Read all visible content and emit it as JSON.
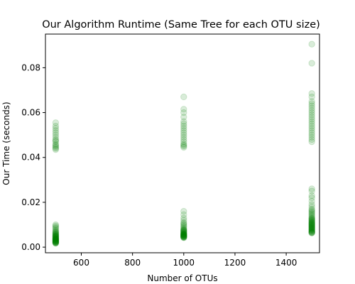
{
  "chart_data": {
    "type": "scatter",
    "title": "Our Algorithm Runtime (Same Tree for each OTU size)",
    "xlabel": "Number of OTUs",
    "ylabel": "Our Time (seconds)",
    "xlim": [
      460,
      1530
    ],
    "ylim": [
      -0.0025,
      0.095
    ],
    "x_ticks": [
      600,
      800,
      1000,
      1200,
      1400
    ],
    "y_ticks": [
      0.0,
      0.02,
      0.04,
      0.06,
      0.08
    ],
    "y_tick_labels": [
      "0.00",
      "0.02",
      "0.04",
      "0.06",
      "0.08"
    ],
    "grid": false,
    "legend": "none",
    "marker_color": "#008000",
    "marker_alpha": 0.15,
    "series": [
      {
        "x": [
          500,
          500,
          500,
          500,
          500,
          500,
          500,
          500,
          500,
          500,
          500,
          500,
          500,
          500,
          500,
          500,
          500,
          500,
          500,
          500,
          500,
          500,
          500,
          500,
          500,
          500,
          500,
          500,
          500,
          500,
          500,
          500,
          500,
          500,
          500,
          500,
          500,
          500,
          500,
          500,
          500,
          500,
          500,
          500,
          500,
          500,
          500,
          500,
          500,
          500,
          500,
          500,
          500,
          500,
          500,
          500,
          500,
          500,
          500,
          500,
          500,
          500,
          1000,
          1000,
          1000,
          1000,
          1000,
          1000,
          1000,
          1000,
          1000,
          1000,
          1000,
          1000,
          1000,
          1000,
          1000,
          1000,
          1000,
          1000,
          1000,
          1000,
          1000,
          1000,
          1000,
          1000,
          1000,
          1000,
          1000,
          1000,
          1000,
          1000,
          1000,
          1000,
          1000,
          1000,
          1000,
          1000,
          1000,
          1000,
          1000,
          1000,
          1000,
          1000,
          1000,
          1000,
          1000,
          1000,
          1000,
          1000,
          1000,
          1000,
          1000,
          1000,
          1000,
          1000,
          1000,
          1000,
          1000,
          1500,
          1500,
          1500,
          1500,
          1500,
          1500,
          1500,
          1500,
          1500,
          1500,
          1500,
          1500,
          1500,
          1500,
          1500,
          1500,
          1500,
          1500,
          1500,
          1500,
          1500,
          1500,
          1500,
          1500,
          1500,
          1500,
          1500,
          1500,
          1500,
          1500,
          1500,
          1500,
          1500,
          1500,
          1500,
          1500,
          1500,
          1500,
          1500,
          1500,
          1500,
          1500,
          1500,
          1500,
          1500,
          1500,
          1500,
          1500,
          1500,
          1500,
          1500,
          1500,
          1500,
          1500,
          1500,
          1500,
          1500,
          1500,
          1500,
          1500,
          1500,
          1500,
          1500,
          1500,
          1500,
          1500,
          1500,
          1500,
          1500,
          1500,
          1500,
          1500
        ],
        "y": [
          0.0555,
          0.054,
          0.053,
          0.052,
          0.051,
          0.05,
          0.049,
          0.048,
          0.0475,
          0.047,
          0.046,
          0.0455,
          0.045,
          0.0445,
          0.044,
          0.0435,
          0.01,
          0.0095,
          0.009,
          0.0085,
          0.008,
          0.0075,
          0.007,
          0.0068,
          0.0065,
          0.0062,
          0.006,
          0.0058,
          0.0056,
          0.0054,
          0.0052,
          0.005,
          0.0049,
          0.0048,
          0.0046,
          0.0045,
          0.0044,
          0.0042,
          0.004,
          0.0039,
          0.0038,
          0.0037,
          0.0036,
          0.0035,
          0.0034,
          0.0033,
          0.0032,
          0.0031,
          0.003,
          0.0029,
          0.0028,
          0.0027,
          0.0026,
          0.0025,
          0.0024,
          0.0023,
          0.0022,
          0.0021,
          0.002,
          0.0019,
          0.0018,
          0.0017,
          0.067,
          0.0615,
          0.06,
          0.058,
          0.056,
          0.055,
          0.054,
          0.053,
          0.052,
          0.051,
          0.05,
          0.049,
          0.048,
          0.047,
          0.046,
          0.0455,
          0.045,
          0.0445,
          0.016,
          0.0145,
          0.013,
          0.012,
          0.011,
          0.0105,
          0.01,
          0.0095,
          0.009,
          0.0085,
          0.008,
          0.0078,
          0.0076,
          0.0074,
          0.0072,
          0.007,
          0.0068,
          0.0066,
          0.0064,
          0.0062,
          0.006,
          0.0059,
          0.0058,
          0.0057,
          0.0056,
          0.0055,
          0.0054,
          0.0053,
          0.0052,
          0.0051,
          0.005,
          0.0049,
          0.0048,
          0.0047,
          0.0046,
          0.0045,
          0.0044,
          0.0043,
          0.0042,
          0.0905,
          0.082,
          0.0685,
          0.067,
          0.065,
          0.064,
          0.063,
          0.062,
          0.061,
          0.06,
          0.059,
          0.058,
          0.057,
          0.056,
          0.055,
          0.054,
          0.053,
          0.052,
          0.051,
          0.05,
          0.049,
          0.048,
          0.047,
          0.026,
          0.025,
          0.023,
          0.022,
          0.0205,
          0.019,
          0.018,
          0.017,
          0.0165,
          0.016,
          0.0155,
          0.015,
          0.0145,
          0.014,
          0.0135,
          0.013,
          0.0128,
          0.0125,
          0.0122,
          0.012,
          0.0118,
          0.0115,
          0.0112,
          0.011,
          0.0108,
          0.0106,
          0.0104,
          0.0102,
          0.01,
          0.0098,
          0.0096,
          0.0094,
          0.0092,
          0.009,
          0.0088,
          0.0086,
          0.0084,
          0.0082,
          0.008,
          0.0078,
          0.0076,
          0.0074,
          0.0072,
          0.007,
          0.0068,
          0.0066,
          0.0065,
          0.0064,
          0.0063
        ]
      }
    ]
  }
}
